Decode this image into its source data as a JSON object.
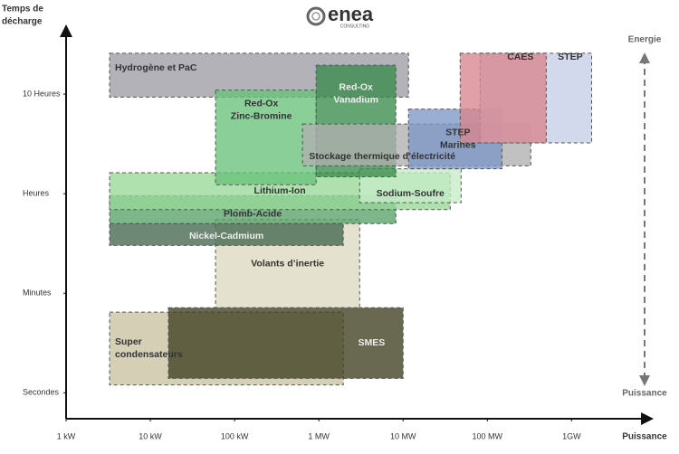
{
  "chart_data": {
    "type": "range",
    "logo": {
      "name": "enea",
      "tagline": "CONSULTING"
    },
    "ylabel": [
      "Temps de",
      "décharge"
    ],
    "xlabel": "Puissance",
    "arrow_top": "Energie",
    "arrow_bottom": "Puissance",
    "xscale": "log",
    "xlim": [
      1,
      7000000
    ],
    "ylim": [
      -0.26,
      3.5
    ],
    "xticks": [
      {
        "value": 1,
        "label": "1 kW"
      },
      {
        "value": 10,
        "label": "10 kW"
      },
      {
        "value": 100,
        "label": "100 kW"
      },
      {
        "value": 1000,
        "label": "1 MW"
      },
      {
        "value": 10000,
        "label": "10 MW"
      },
      {
        "value": 100000,
        "label": "100 MW"
      },
      {
        "value": 1000000,
        "label": "1GW"
      }
    ],
    "yticks": [
      {
        "value": 0,
        "label": "Secondes"
      },
      {
        "value": 1,
        "label": "Minutes"
      },
      {
        "value": 2,
        "label": "Heures"
      },
      {
        "value": 3,
        "label": "10 Heures"
      }
    ],
    "series": [
      {
        "name": [
          "Hydrogène et PaC"
        ],
        "color": "#9c9ca4",
        "x": [
          3.28,
          11600
        ],
        "y": [
          2.97,
          3.41
        ]
      },
      {
        "name": [
          "Super",
          "condensateurs"
        ],
        "color": "#c9c3a0",
        "x": [
          3.28,
          1950
        ],
        "y": [
          0.08,
          0.81
        ]
      },
      {
        "name": [
          "SMES"
        ],
        "color": "#3f3f20",
        "x": [
          16.4,
          10000
        ],
        "y": [
          0.145,
          0.855
        ]
      },
      {
        "name": [
          "Volants d’inertie"
        ],
        "color": "#dcd8c0",
        "x": [
          59.4,
          3050
        ],
        "y": [
          0.855,
          1.74
        ]
      },
      {
        "name": [
          "Nickel-Cadmium"
        ],
        "color": "#44664e",
        "x": [
          3.28,
          1950
        ],
        "y": [
          1.48,
          1.7
        ]
      },
      {
        "name": [
          "Plomb-Acide"
        ],
        "color": "#58a268",
        "x": [
          3.28,
          8200
        ],
        "y": [
          1.7,
          1.98
        ]
      },
      {
        "name": [
          "Lithium-Ion"
        ],
        "color": "#98d898",
        "x": [
          3.28,
          36200
        ],
        "y": [
          1.84,
          2.21
        ]
      },
      {
        "name": [
          "Sodium-Soufre"
        ],
        "color": "#c8ecc8",
        "x": [
          3050,
          48800
        ],
        "y": [
          1.91,
          2.25
        ]
      },
      {
        "name": [
          "Red-Ox",
          "Zinc-Bromine"
        ],
        "color": "#68c27a",
        "x": [
          59.4,
          929
        ],
        "y": [
          2.09,
          3.04
        ]
      },
      {
        "name": [
          "Red-Ox",
          "Vanadium"
        ],
        "color": "#3a8a4c",
        "x": [
          929,
          8200
        ],
        "y": [
          2.17,
          3.29
        ]
      },
      {
        "name": [
          "Stockage thermique d’électricité"
        ],
        "color": "#b0b0b0",
        "x": [
          640,
          328000
        ],
        "y": [
          2.28,
          2.7
        ]
      },
      {
        "name": [
          "STEP",
          "Marines"
        ],
        "color": "#7e96c6",
        "x": [
          11600,
          149000
        ],
        "y": [
          2.25,
          2.85
        ]
      },
      {
        "name": [
          "STEP"
        ],
        "color": "#c6cee8",
        "x": [
          82000,
          1730000
        ],
        "y": [
          2.51,
          3.41
        ]
      },
      {
        "name": [
          "CAES"
        ],
        "color": "#d9858e",
        "x": [
          47600,
          500000
        ],
        "y": [
          2.51,
          3.41
        ]
      }
    ]
  }
}
